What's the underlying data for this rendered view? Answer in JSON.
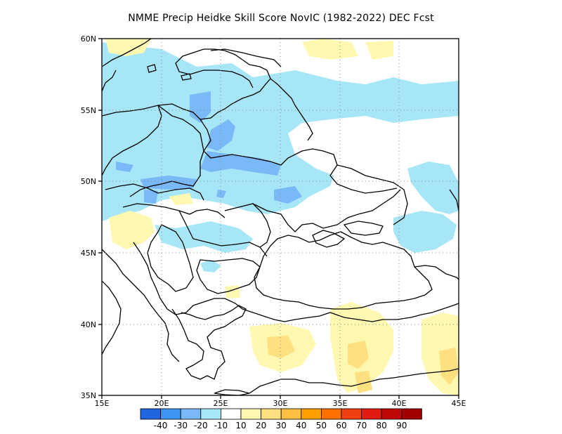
{
  "title": "NMME Precip Heidke Skill Score NovIC (1982-2022) DEC Fcst",
  "map": {
    "lon_ticks": [
      "15E",
      "20E",
      "25E",
      "30E",
      "35E",
      "40E",
      "45E"
    ],
    "lat_ticks": [
      "35N",
      "40N",
      "45N",
      "50N",
      "55N",
      "60N"
    ],
    "lon_range": [
      15,
      45
    ],
    "lat_range": [
      35,
      60
    ],
    "grid": "dotted"
  },
  "colorbar": {
    "colors": [
      "#2166e0",
      "#3f93f2",
      "#7ab9f7",
      "#a7e6f7",
      "#ffffff",
      "#fff8b0",
      "#ffe080",
      "#ffc040",
      "#ffa000",
      "#ff7000",
      "#f04010",
      "#e01a10",
      "#c00808",
      "#a00000"
    ],
    "labels": [
      "-40",
      "-30",
      "-20",
      "-10",
      "10",
      "20",
      "30",
      "40",
      "50",
      "60",
      "70",
      "80",
      "90"
    ]
  }
}
